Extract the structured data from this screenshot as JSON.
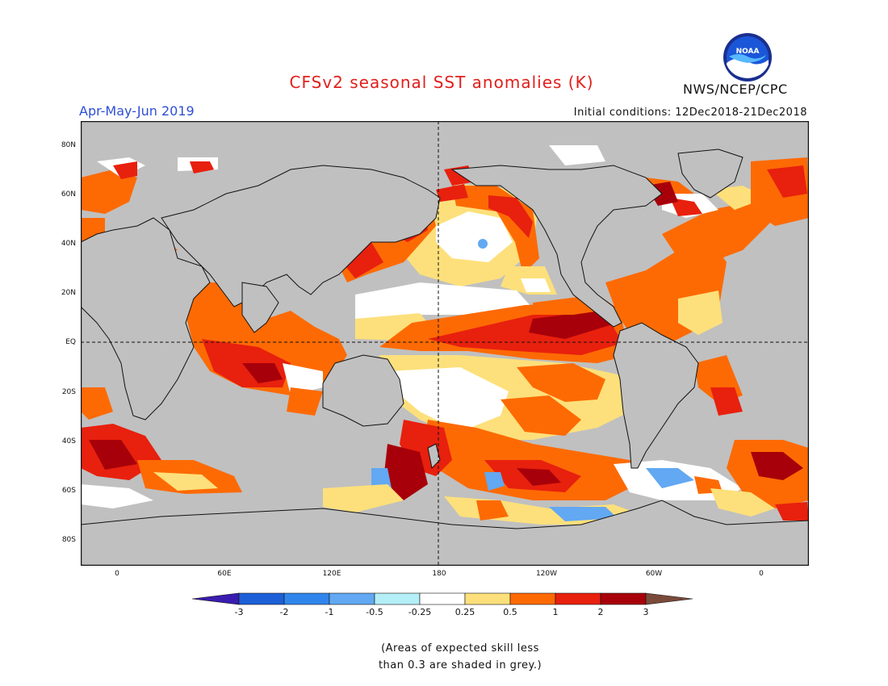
{
  "header": {
    "title": "CFSv2 seasonal SST anomalies (K)",
    "period": "Apr-May-Jun 2019",
    "initial_conditions": "Initial conditions: 12Dec2018-21Dec2018",
    "agency": "NWS/NCEP/CPC",
    "logo_text": "NOAA"
  },
  "map": {
    "lat_labels": [
      "80N",
      "60N",
      "40N",
      "20N",
      "EQ",
      "20S",
      "40S",
      "60S",
      "80S"
    ],
    "lon_labels": [
      "0",
      "60E",
      "120E",
      "180",
      "120W",
      "60W",
      "0"
    ],
    "land_color": "#c0c0c0",
    "no_skill_color": "#c0c0c0"
  },
  "colorbar": {
    "labels": [
      "-3",
      "-2",
      "-1",
      "-0.5",
      "-0.25",
      "0.25",
      "0.5",
      "1",
      "2",
      "3"
    ],
    "colors": [
      "#3a1db0",
      "#1d5fd6",
      "#2f85ec",
      "#62a8f2",
      "#b4eef6",
      "#ffffff",
      "#fde07b",
      "#fd6a04",
      "#e8200e",
      "#a8000a",
      "#7a4a3a"
    ]
  },
  "note": {
    "line1": "(Areas of expected skill less",
    "line2": "than 0.3 are shaded in grey.)"
  }
}
